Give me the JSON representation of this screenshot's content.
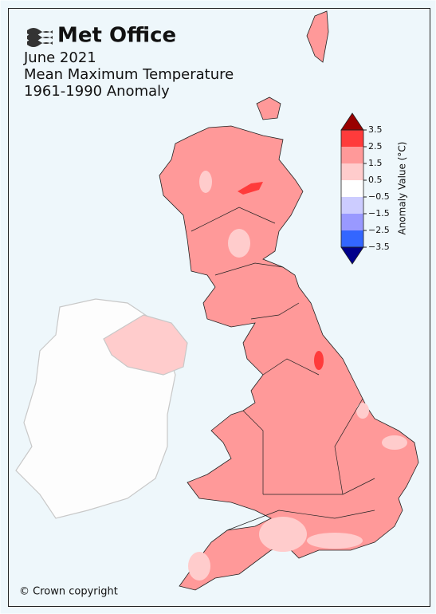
{
  "header": {
    "logo": "Met Office",
    "title": [
      "June 2021",
      "Mean Maximum Temperature",
      "1961-1990 Anomaly"
    ]
  },
  "colorbar": {
    "label": "Anomaly Value (°C)",
    "ticks": [
      3.5,
      2.5,
      1.5,
      0.5,
      {
        "value": -0.5,
        "label": "−0.5"
      },
      {
        "value": -1.5,
        "label": "−1.5"
      },
      {
        "value": -2.5,
        "label": "−2.5"
      },
      {
        "value": -3.5,
        "label": "−3.5"
      }
    ],
    "colors": [
      "#ff3b3b",
      "#ff9999",
      "#ffcccc",
      "#ffffff",
      "#ccccff",
      "#9999ff",
      "#3366ff"
    ],
    "extend_colors": [
      "#990000",
      "#00008b"
    ]
  },
  "footer": {
    "copyright": "© Crown copyright"
  }
}
